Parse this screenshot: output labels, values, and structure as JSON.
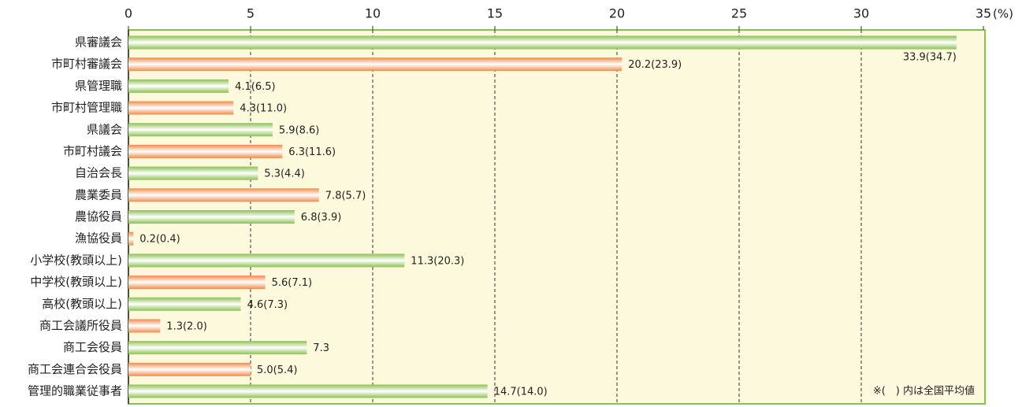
{
  "chart_data": {
    "type": "barh",
    "categories": [
      "県審議会",
      "市町村審議会",
      "県管理職",
      "市町村管理職",
      "県議会",
      "市町村議会",
      "自治会長",
      "農業委員",
      "農協役員",
      "漁協役員",
      "小学校(教頭以上)",
      "中学校(教頭以上)",
      "高校(教頭以上)",
      "商工会議所役員",
      "商工会役員",
      "商工会連合会役員",
      "管理的職業従事者"
    ],
    "values": [
      33.9,
      20.2,
      4.1,
      4.3,
      5.9,
      6.3,
      5.3,
      7.8,
      6.8,
      0.2,
      11.3,
      5.6,
      4.6,
      1.3,
      7.3,
      5.0,
      14.7
    ],
    "value_labels": [
      "33.9(34.7)",
      "20.2(23.9)",
      "4.1(6.5)",
      "4.3(11.0)",
      "5.9(8.6)",
      "6.3(11.6)",
      "5.3(4.4)",
      "7.8(5.7)",
      "6.8(3.9)",
      "0.2(0.4)",
      "11.3(20.3)",
      "5.6(7.1)",
      "4.6(7.3)",
      "1.3(2.0)",
      "7.3",
      "5.0(5.4)",
      "14.7(14.0)"
    ],
    "colors": [
      "#8cc152",
      "#f08a4b",
      "#8cc152",
      "#f08a4b",
      "#8cc152",
      "#f08a4b",
      "#8cc152",
      "#f08a4b",
      "#8cc152",
      "#f08a4b",
      "#8cc152",
      "#f08a4b",
      "#8cc152",
      "#f08a4b",
      "#8cc152",
      "#f08a4b",
      "#8cc152"
    ],
    "xlim": [
      0,
      35
    ],
    "xticks": [
      0,
      5,
      10,
      15,
      20,
      25,
      30,
      35
    ],
    "x_unit": "(%)",
    "grid": true,
    "annotation": "※(　) 内は全国平均値"
  }
}
